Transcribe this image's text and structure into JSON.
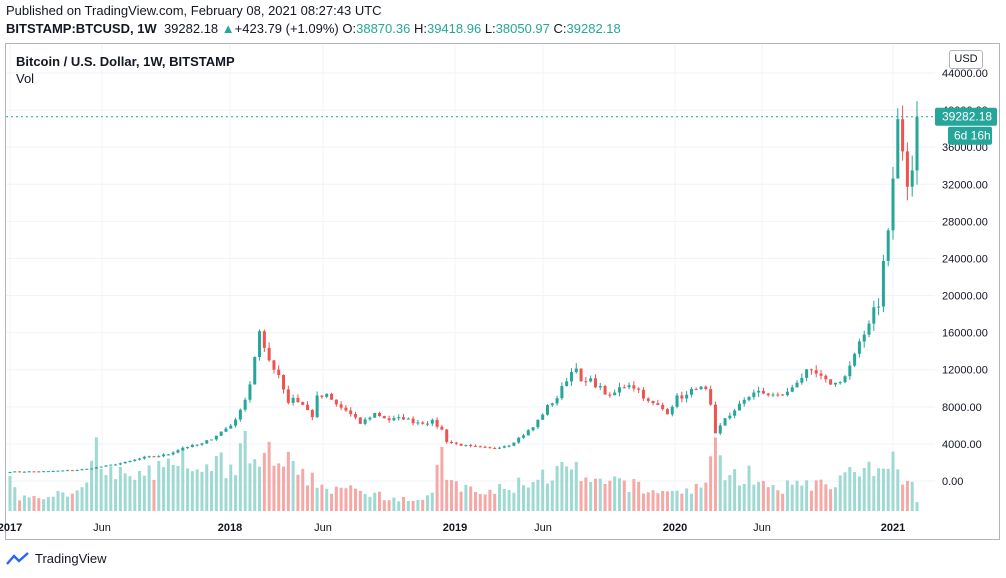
{
  "header": {
    "published": "Published on TradingView.com, February 08, 2021 08:27:43 UTC",
    "symbol": "BITSTAMP:BTCUSD, 1W",
    "last": "39282.18",
    "change": "+423.79 (+1.09%)",
    "o_label": "O:",
    "o_value": "38870.36",
    "h_label": "H:",
    "h_value": "39418.96",
    "l_label": "L:",
    "l_value": "38050.97",
    "c_label": "C:",
    "c_value": "39282.18"
  },
  "legend": {
    "title": "Bitcoin / U.S. Dollar, 1W, BITSTAMP",
    "vol": "Vol"
  },
  "currency": "USD",
  "price_tag": "39282.18",
  "countdown_tag": "6d 16h",
  "footer": {
    "brand": "TradingView"
  },
  "colors": {
    "up": "#26a69a",
    "down": "#ef5350",
    "up_vol": "#9fd9d3",
    "down_vol": "#f5a8a6"
  },
  "chart_data": {
    "type": "candlestick",
    "interval": "1W",
    "y_ticks": [
      44000,
      40000,
      36000,
      32000,
      28000,
      24000,
      20000,
      16000,
      12000,
      8000,
      4000,
      0
    ],
    "y_tick_labels": [
      "44000.00",
      "40000.00",
      "36000.00",
      "32000.00",
      "28000.00",
      "24000.00",
      "20000.00",
      "16000.00",
      "12000.00",
      "8000.00",
      "4000.00",
      "0.00"
    ],
    "x_tick_labels": [
      "2017",
      "Jun",
      "2018",
      "Jun",
      "2019",
      "Jun",
      "2020",
      "Jun",
      "2021"
    ],
    "price_points": [
      [
        0,
        1000
      ],
      [
        8,
        1050
      ],
      [
        14,
        1200
      ],
      [
        16,
        1300
      ],
      [
        19,
        1550
      ],
      [
        24,
        2000
      ],
      [
        28,
        2550
      ],
      [
        31,
        2700
      ],
      [
        33,
        2900
      ],
      [
        36,
        3600
      ],
      [
        40,
        4000
      ],
      [
        42,
        4600
      ],
      [
        46,
        6000
      ],
      [
        48,
        7500
      ],
      [
        50,
        10500
      ],
      [
        51,
        13500
      ],
      [
        52,
        16000
      ],
      [
        53,
        14000
      ],
      [
        54,
        13000
      ],
      [
        56,
        11500
      ],
      [
        58,
        8500
      ],
      [
        59,
        9000
      ],
      [
        61,
        8200
      ],
      [
        63,
        7000
      ],
      [
        64,
        9000
      ],
      [
        66,
        9200
      ],
      [
        68,
        8200
      ],
      [
        70,
        7600
      ],
      [
        73,
        6200
      ],
      [
        76,
        7300
      ],
      [
        79,
        6600
      ],
      [
        82,
        6800
      ],
      [
        84,
        6400
      ],
      [
        86,
        6300
      ],
      [
        88,
        6400
      ],
      [
        90,
        5500
      ],
      [
        91,
        4300
      ],
      [
        93,
        4000
      ],
      [
        96,
        3700
      ],
      [
        100,
        3500
      ],
      [
        104,
        3900
      ],
      [
        107,
        5000
      ],
      [
        109,
        5800
      ],
      [
        112,
        8000
      ],
      [
        114,
        9000
      ],
      [
        116,
        11000
      ],
      [
        118,
        12500
      ],
      [
        119,
        10500
      ],
      [
        121,
        10800
      ],
      [
        123,
        10000
      ],
      [
        125,
        9000
      ],
      [
        127,
        10000
      ],
      [
        129,
        10500
      ],
      [
        131,
        9800
      ],
      [
        133,
        8500
      ],
      [
        135,
        8100
      ],
      [
        137,
        7400
      ],
      [
        139,
        9000
      ],
      [
        141,
        9200
      ],
      [
        143,
        10200
      ],
      [
        145,
        9700
      ],
      [
        146,
        8000
      ],
      [
        147,
        5000
      ],
      [
        149,
        6800
      ],
      [
        151,
        7500
      ],
      [
        153,
        8800
      ],
      [
        155,
        9600
      ],
      [
        157,
        9400
      ],
      [
        160,
        9200
      ],
      [
        162,
        9500
      ],
      [
        164,
        10800
      ],
      [
        166,
        11700
      ],
      [
        168,
        11500
      ],
      [
        170,
        10700
      ],
      [
        172,
        10500
      ],
      [
        174,
        11300
      ],
      [
        176,
        13500
      ],
      [
        178,
        15800
      ],
      [
        180,
        18800
      ],
      [
        181,
        19200
      ],
      [
        182,
        23500
      ],
      [
        183,
        27000
      ],
      [
        184,
        32500
      ],
      [
        185,
        39000
      ],
      [
        186,
        35000
      ],
      [
        187,
        32000
      ],
      [
        188,
        33000
      ],
      [
        189,
        39282
      ]
    ],
    "volume_points": [
      [
        0,
        3600
      ],
      [
        2,
        1200
      ],
      [
        4,
        900
      ],
      [
        6,
        1500
      ],
      [
        8,
        1100
      ],
      [
        10,
        2000
      ],
      [
        12,
        1300
      ],
      [
        14,
        2200
      ],
      [
        16,
        3000
      ],
      [
        18,
        4800
      ],
      [
        20,
        3200
      ],
      [
        22,
        2800
      ],
      [
        24,
        3500
      ],
      [
        26,
        2400
      ],
      [
        28,
        3100
      ],
      [
        30,
        2900
      ],
      [
        32,
        4500
      ],
      [
        33,
        5800
      ],
      [
        34,
        3600
      ],
      [
        36,
        4300
      ],
      [
        38,
        3200
      ],
      [
        40,
        2700
      ],
      [
        42,
        3600
      ],
      [
        44,
        3900
      ],
      [
        46,
        3300
      ],
      [
        48,
        4500
      ],
      [
        49,
        5800
      ],
      [
        50,
        3800
      ],
      [
        52,
        4400
      ],
      [
        54,
        4700
      ],
      [
        56,
        3400
      ],
      [
        58,
        4100
      ],
      [
        60,
        2700
      ],
      [
        62,
        2900
      ],
      [
        64,
        2400
      ],
      [
        66,
        1900
      ],
      [
        68,
        2100
      ],
      [
        70,
        1800
      ],
      [
        72,
        1600
      ],
      [
        74,
        1400
      ],
      [
        76,
        1700
      ],
      [
        78,
        1300
      ],
      [
        80,
        1200
      ],
      [
        82,
        1100
      ],
      [
        84,
        1000
      ],
      [
        86,
        1100
      ],
      [
        88,
        1300
      ],
      [
        90,
        4800
      ],
      [
        91,
        3300
      ],
      [
        92,
        2200
      ],
      [
        94,
        2000
      ],
      [
        96,
        1700
      ],
      [
        98,
        1400
      ],
      [
        100,
        1600
      ],
      [
        102,
        1800
      ],
      [
        104,
        1700
      ],
      [
        106,
        2300
      ],
      [
        108,
        2500
      ],
      [
        110,
        2800
      ],
      [
        112,
        3000
      ],
      [
        114,
        3300
      ],
      [
        116,
        3500
      ],
      [
        118,
        3200
      ],
      [
        120,
        2500
      ],
      [
        122,
        2300
      ],
      [
        124,
        2000
      ],
      [
        126,
        2600
      ],
      [
        128,
        2400
      ],
      [
        130,
        2100
      ],
      [
        132,
        1800
      ],
      [
        134,
        1500
      ],
      [
        136,
        1900
      ],
      [
        138,
        1700
      ],
      [
        140,
        1500
      ],
      [
        142,
        2000
      ],
      [
        144,
        1800
      ],
      [
        146,
        4300
      ],
      [
        147,
        5200
      ],
      [
        148,
        3700
      ],
      [
        150,
        3500
      ],
      [
        152,
        2800
      ],
      [
        154,
        3300
      ],
      [
        156,
        2300
      ],
      [
        158,
        1800
      ],
      [
        160,
        1600
      ],
      [
        162,
        2000
      ],
      [
        164,
        2500
      ],
      [
        166,
        2700
      ],
      [
        168,
        2100
      ],
      [
        170,
        2300
      ],
      [
        172,
        2600
      ],
      [
        174,
        2900
      ],
      [
        176,
        3200
      ],
      [
        178,
        3000
      ],
      [
        180,
        3500
      ],
      [
        182,
        2900
      ],
      [
        184,
        4500
      ],
      [
        185,
        4000
      ],
      [
        186,
        3100
      ],
      [
        187,
        3600
      ],
      [
        188,
        2400
      ],
      [
        189,
        600
      ]
    ]
  }
}
